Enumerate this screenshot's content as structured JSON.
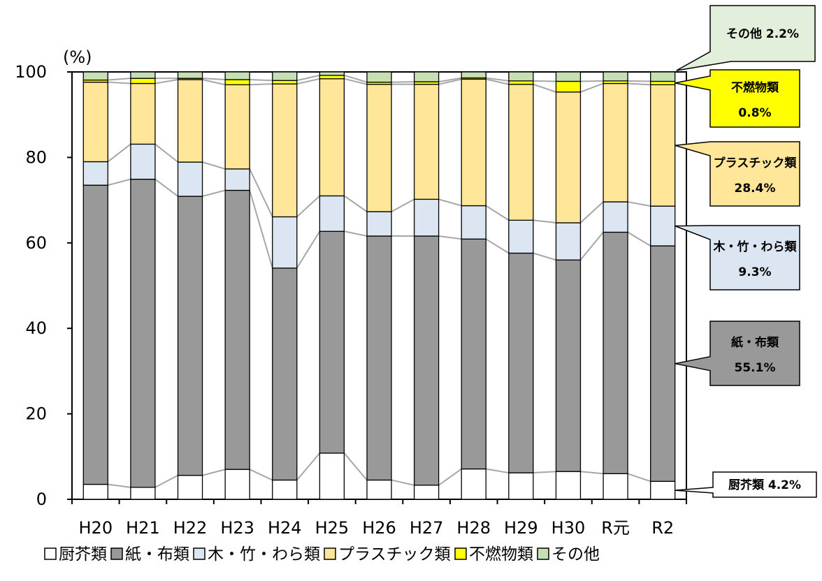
{
  "chart_data": {
    "type": "bar",
    "stacked": true,
    "unit_label": "(%)",
    "ylim": [
      0,
      100
    ],
    "yticks": [
      "0",
      "20",
      "40",
      "60",
      "80",
      "100"
    ],
    "categories": [
      "H20",
      "H21",
      "H22",
      "H23",
      "H24",
      "H25",
      "H26",
      "H27",
      "H28",
      "H29",
      "H30",
      "R元",
      "R2"
    ],
    "series": [
      {
        "name": "厨芥類",
        "color": "#ffffff",
        "values": [
          3.5,
          2.8,
          5.6,
          7.0,
          4.5,
          10.8,
          4.5,
          3.3,
          7.1,
          6.2,
          6.5,
          6.0,
          4.2
        ]
      },
      {
        "name": "紙・布類",
        "color": "#999999",
        "values": [
          70.0,
          72.1,
          65.3,
          65.3,
          49.6,
          51.9,
          57.1,
          58.3,
          53.8,
          51.4,
          49.5,
          56.5,
          55.1
        ]
      },
      {
        "name": "木・竹・わら類",
        "color": "#dce6f2",
        "values": [
          5.5,
          8.2,
          8.0,
          5.0,
          12.0,
          8.3,
          5.7,
          8.6,
          7.8,
          7.7,
          8.7,
          7.1,
          9.3
        ]
      },
      {
        "name": "プラスチック類",
        "color": "#ffe699",
        "values": [
          18.6,
          14.2,
          19.3,
          19.7,
          31.1,
          27.4,
          29.8,
          26.9,
          29.6,
          31.8,
          30.6,
          27.7,
          28.4
        ]
      },
      {
        "name": "不燃物類",
        "color": "#ffff00",
        "values": [
          0.5,
          1.2,
          0.3,
          1.2,
          0.8,
          0.8,
          0.5,
          0.6,
          0.3,
          0.8,
          2.5,
          0.6,
          0.8
        ]
      },
      {
        "name": "その他",
        "color": "#c6e0b4",
        "values": [
          1.9,
          1.5,
          1.5,
          1.8,
          2.0,
          0.8,
          2.4,
          2.3,
          1.4,
          2.1,
          2.2,
          2.1,
          2.2
        ]
      }
    ],
    "callouts": [
      {
        "series": "厨芥類",
        "text": "厨芥類 4.2%",
        "bg": "#ffffff"
      },
      {
        "series": "紙・布類",
        "line1": "紙・布類",
        "line2": "55.1%",
        "bg": "#999999"
      },
      {
        "series": "木・竹・わら類",
        "line1": "木・竹・わら類",
        "line2": "9.3%",
        "bg": "#dce6f2"
      },
      {
        "series": "プラスチック類",
        "line1": "プラスチック類",
        "line2": "28.4%",
        "bg": "#ffe699"
      },
      {
        "series": "不燃物類",
        "line1": "不燃物類",
        "line2": "0.8%",
        "bg": "#ffff00"
      },
      {
        "series": "その他",
        "text": "その他 2.2%",
        "bg": "#e2efda"
      }
    ],
    "legend_position": "bottom",
    "grid": false
  }
}
